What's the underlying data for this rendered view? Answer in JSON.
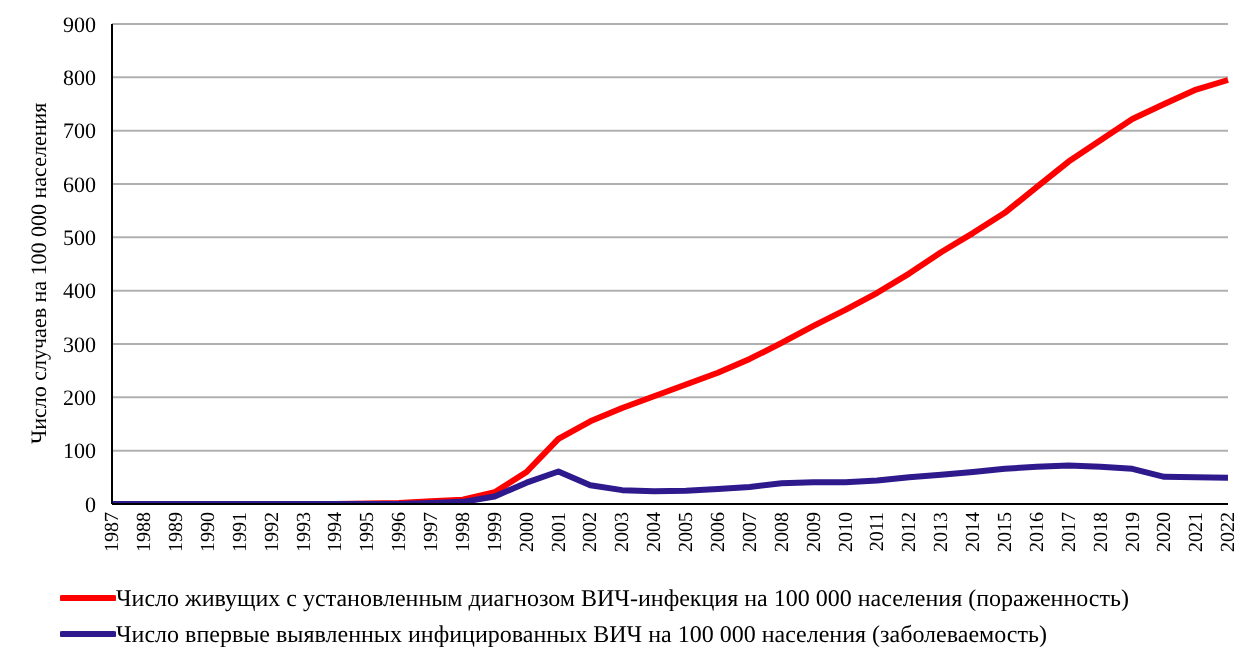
{
  "chart_data": {
    "type": "line",
    "ylabel": "Число случаев на 100 000 населения",
    "categories": [
      "1987",
      "1988",
      "1989",
      "1990",
      "1991",
      "1992",
      "1993",
      "1994",
      "1995",
      "1996",
      "1997",
      "1998",
      "1999",
      "2000",
      "2001",
      "2002",
      "2003",
      "2004",
      "2005",
      "2006",
      "2007",
      "2008",
      "2009",
      "2010",
      "2011",
      "2012",
      "2013",
      "2014",
      "2015",
      "2016",
      "2017",
      "2018",
      "2019",
      "2020",
      "2021",
      "2022"
    ],
    "series": [
      {
        "name": "Число живущих с установленным диагнозом ВИЧ-инфекция на 100 000 населения (пораженность)",
        "color": "#ff0000",
        "values": [
          null,
          null,
          null,
          null,
          null,
          null,
          null,
          0,
          1,
          2,
          5,
          8,
          22,
          60,
          122,
          155,
          180,
          202,
          224,
          246,
          272,
          302,
          334,
          364,
          396,
          432,
          472,
          508,
          546,
          594,
          642,
          682,
          722,
          750,
          777,
          795
        ]
      },
      {
        "name": "Число впервые выявленных инфицированных ВИЧ на 100 000 населения (заболеваемость)",
        "color": "#2e1a8c",
        "values": [
          0,
          0,
          0,
          0,
          0,
          0,
          0,
          0,
          0,
          0,
          2,
          4,
          14,
          40,
          61,
          35,
          26,
          24,
          25,
          28,
          32,
          39,
          41,
          41,
          44,
          50,
          55,
          60,
          66,
          70,
          72,
          70,
          66,
          51,
          50,
          49
        ]
      }
    ],
    "ylim": [
      0,
      900
    ],
    "yticks": [
      0,
      100,
      200,
      300,
      400,
      500,
      600,
      700,
      800,
      900
    ],
    "grid": "y",
    "legend": "bottom",
    "marker": "none",
    "line_style": "solid"
  }
}
